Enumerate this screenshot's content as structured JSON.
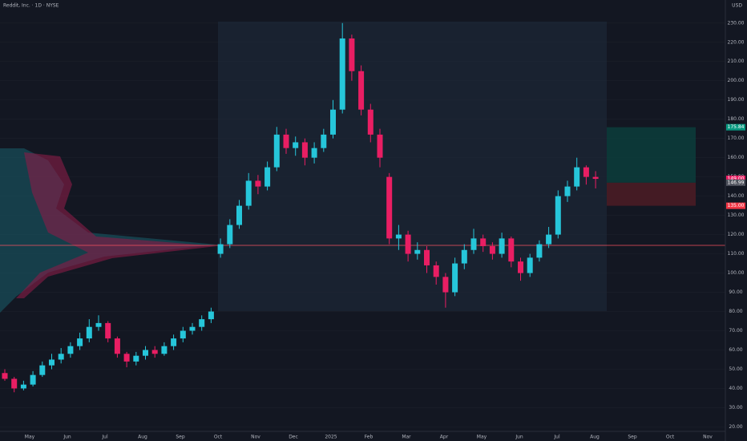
{
  "chart_data": {
    "type": "candlestick",
    "title": "Reddit, Inc. · 1D · NYSE",
    "currency": "USD",
    "ylim": [
      16,
      242
    ],
    "yticks": [
      {
        "value": 230,
        "label": "230.00"
      },
      {
        "value": 220,
        "label": "220.00"
      },
      {
        "value": 210,
        "label": "210.00"
      },
      {
        "value": 200,
        "label": "200.00"
      },
      {
        "value": 190,
        "label": "190.00"
      },
      {
        "value": 180,
        "label": "180.00"
      },
      {
        "value": 170,
        "label": "170.00"
      },
      {
        "value": 160,
        "label": "160.00"
      },
      {
        "value": 150,
        "label": "150.00"
      },
      {
        "value": 140,
        "label": "140.00"
      },
      {
        "value": 130,
        "label": "130.00"
      },
      {
        "value": 120,
        "label": "120.00"
      },
      {
        "value": 110,
        "label": "110.00"
      },
      {
        "value": 100,
        "label": "100.00"
      },
      {
        "value": 90,
        "label": "90.00"
      },
      {
        "value": 80,
        "label": "80.00"
      },
      {
        "value": 70,
        "label": "70.00"
      },
      {
        "value": 60,
        "label": "60.00"
      },
      {
        "value": 50,
        "label": "50.00"
      },
      {
        "value": 40,
        "label": "40.00"
      },
      {
        "value": 30,
        "label": "30.00"
      },
      {
        "value": 20,
        "label": "20.00"
      }
    ],
    "xticks": [
      "May",
      "Jun",
      "Jul",
      "Aug",
      "Sep",
      "Oct",
      "Nov",
      "Dec",
      "2025",
      "Feb",
      "Mar",
      "Apr",
      "May",
      "Jun",
      "Jul",
      "Aug",
      "Sep",
      "Oct",
      "Nov"
    ],
    "grid": true,
    "up_color": "#26c6da",
    "down_color": "#e91e63",
    "open": [
      48,
      45,
      40,
      42,
      47,
      52,
      55,
      58,
      62,
      66,
      72,
      74,
      66,
      58,
      54,
      57,
      60,
      58,
      62,
      66,
      70,
      72,
      76,
      110,
      115,
      125,
      135,
      148,
      145,
      155,
      172,
      165,
      168,
      160,
      165,
      172,
      185,
      222,
      205,
      185,
      172,
      150,
      118,
      120,
      110,
      112,
      104,
      98,
      90,
      105,
      112,
      118,
      114,
      110,
      118,
      106,
      100,
      108,
      115,
      120,
      140,
      145,
      155,
      150
    ],
    "high": [
      50,
      46,
      44,
      49,
      54,
      58,
      61,
      64,
      69,
      76,
      78,
      75,
      67,
      59,
      59,
      62,
      62,
      64,
      68,
      72,
      74,
      78,
      82,
      118,
      128,
      138,
      152,
      151,
      158,
      176,
      175,
      171,
      170,
      168,
      175,
      190,
      230,
      224,
      208,
      188,
      175,
      152,
      125,
      122,
      116,
      114,
      106,
      100,
      108,
      115,
      123,
      120,
      116,
      121,
      119,
      108,
      110,
      117,
      124,
      143,
      148,
      160,
      156,
      153
    ],
    "low": [
      44,
      38,
      39,
      41,
      46,
      50,
      53,
      56,
      60,
      64,
      70,
      64,
      56,
      51,
      52,
      55,
      56,
      57,
      60,
      64,
      68,
      70,
      74,
      108,
      113,
      123,
      133,
      141,
      143,
      153,
      162,
      161,
      156,
      157,
      163,
      170,
      183,
      200,
      182,
      168,
      155,
      115,
      112,
      106,
      107,
      100,
      94,
      82,
      88,
      102,
      110,
      111,
      107,
      108,
      103,
      96,
      98,
      106,
      113,
      118,
      137,
      143,
      146,
      144
    ],
    "close": [
      45,
      40,
      42,
      47,
      52,
      55,
      58,
      62,
      66,
      72,
      74,
      66,
      58,
      54,
      57,
      60,
      58,
      62,
      66,
      70,
      72,
      76,
      80,
      115,
      125,
      135,
      148,
      145,
      155,
      172,
      165,
      168,
      160,
      165,
      172,
      185,
      222,
      205,
      185,
      172,
      160,
      118,
      120,
      110,
      112,
      104,
      98,
      90,
      105,
      112,
      118,
      114,
      110,
      118,
      106,
      100,
      108,
      115,
      120,
      140,
      145,
      155,
      150,
      149
    ],
    "price_labels": [
      {
        "value": 175.84,
        "label": "175.84",
        "color": "#089981"
      },
      {
        "value": 149,
        "label": "149.00",
        "color": "#e91e63"
      },
      {
        "value": 146.99,
        "label": "146.99",
        "color": "#50535e"
      },
      {
        "value": 135,
        "label": "135.00",
        "color": "#f23645"
      }
    ]
  }
}
